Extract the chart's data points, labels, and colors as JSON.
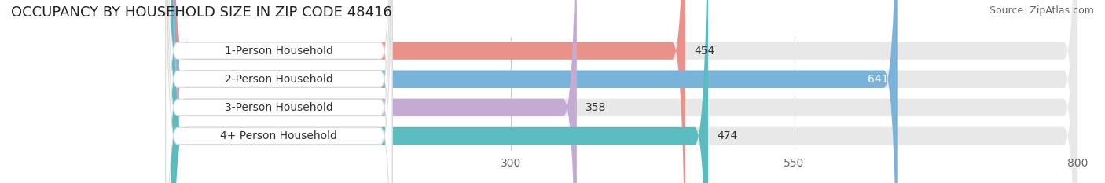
{
  "title": "OCCUPANCY BY HOUSEHOLD SIZE IN ZIP CODE 48416",
  "source": "Source: ZipAtlas.com",
  "categories": [
    "1-Person Household",
    "2-Person Household",
    "3-Person Household",
    "4+ Person Household"
  ],
  "values": [
    454,
    641,
    358,
    474
  ],
  "bar_colors": [
    "#e8928a",
    "#7ab3d9",
    "#c5aad4",
    "#5bbcbf"
  ],
  "bg_color": "#ffffff",
  "bar_bg_color": "#e8e8e8",
  "xlim_min": 0,
  "xlim_max": 800,
  "xticks": [
    300,
    550,
    800
  ],
  "title_fontsize": 13,
  "source_fontsize": 9,
  "label_fontsize": 10,
  "value_fontsize": 10,
  "tick_fontsize": 10,
  "figsize": [
    14.06,
    2.33
  ],
  "dpi": 100
}
